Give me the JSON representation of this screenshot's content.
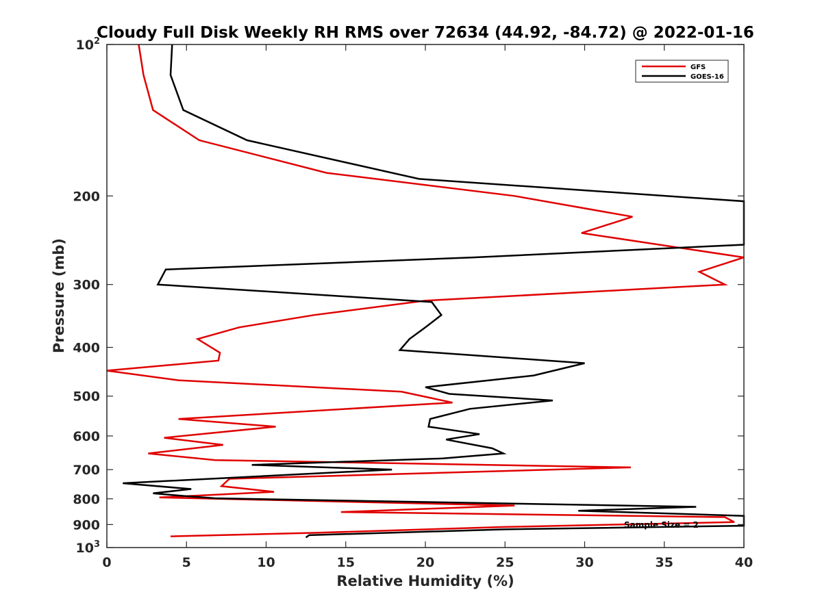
{
  "chart_data": {
    "type": "line",
    "title": "Cloudy Full Disk Weekly RH RMS over 72634 (44.92, -84.72) @ 2022-01-16",
    "xlabel": "Relative Humidity (%)",
    "ylabel": "Pressure (mb)",
    "xlim": [
      0,
      40
    ],
    "ylim": [
      100,
      1000
    ],
    "y_scale": "log",
    "y_reversed": true,
    "x_ticks": [
      "0",
      "5",
      "10",
      "15",
      "20",
      "25",
      "30",
      "35",
      "40"
    ],
    "y_ticks": [
      {
        "value": 100,
        "label": "10",
        "exp": "2"
      },
      {
        "value": 200,
        "label": "200"
      },
      {
        "value": 300,
        "label": "300"
      },
      {
        "value": 400,
        "label": "400"
      },
      {
        "value": 500,
        "label": "500"
      },
      {
        "value": 600,
        "label": "600"
      },
      {
        "value": 700,
        "label": "700"
      },
      {
        "value": 800,
        "label": "800"
      },
      {
        "value": 900,
        "label": "900"
      },
      {
        "value": 1000,
        "label": "10",
        "exp": "3"
      }
    ],
    "legend_position": "top-right",
    "annotation": "Sample Size = 2",
    "series": [
      {
        "name": "GFS",
        "color": "#e00000",
        "points": [
          [
            2.0,
            100
          ],
          [
            2.3,
            115
          ],
          [
            2.9,
            135
          ],
          [
            5.8,
            155
          ],
          [
            13.8,
            180
          ],
          [
            25.6,
            200
          ],
          [
            33.0,
            220
          ],
          [
            29.8,
            237
          ],
          [
            40.0,
            265
          ],
          [
            37.2,
            283
          ],
          [
            38.8,
            300
          ],
          [
            20.0,
            323
          ],
          [
            13.0,
            345
          ],
          [
            8.3,
            365
          ],
          [
            5.7,
            385
          ],
          [
            7.1,
            410
          ],
          [
            7.0,
            425
          ],
          [
            0.0,
            445
          ],
          [
            4.5,
            465
          ],
          [
            18.5,
            490
          ],
          [
            21.7,
            515
          ],
          [
            4.5,
            555
          ],
          [
            10.6,
            575
          ],
          [
            3.6,
            605
          ],
          [
            7.3,
            625
          ],
          [
            2.6,
            650
          ],
          [
            6.8,
            670
          ],
          [
            32.9,
            693
          ],
          [
            7.7,
            730
          ],
          [
            7.2,
            755
          ],
          [
            10.5,
            775
          ],
          [
            3.3,
            795
          ],
          [
            25.6,
            825
          ],
          [
            14.7,
            850
          ],
          [
            38.8,
            870
          ],
          [
            39.4,
            890
          ],
          [
            25.0,
            910
          ],
          [
            13.0,
            935
          ],
          [
            4.0,
            950
          ]
        ]
      },
      {
        "name": "GOES-16",
        "color": "#000000",
        "points": [
          [
            4.1,
            100
          ],
          [
            4.0,
            115
          ],
          [
            4.8,
            135
          ],
          [
            8.8,
            155
          ],
          [
            19.6,
            185
          ],
          [
            40.0,
            205
          ],
          [
            40.0,
            250
          ],
          [
            23.0,
            265
          ],
          [
            3.7,
            280
          ],
          [
            3.2,
            300
          ],
          [
            20.4,
            325
          ],
          [
            21.0,
            345
          ],
          [
            20.0,
            365
          ],
          [
            19.0,
            385
          ],
          [
            18.4,
            405
          ],
          [
            30.0,
            430
          ],
          [
            26.8,
            455
          ],
          [
            20.0,
            480
          ],
          [
            21.5,
            495
          ],
          [
            28.0,
            510
          ],
          [
            22.8,
            530
          ],
          [
            20.3,
            555
          ],
          [
            20.2,
            575
          ],
          [
            23.4,
            595
          ],
          [
            21.3,
            610
          ],
          [
            24.2,
            635
          ],
          [
            24.9,
            650
          ],
          [
            21.1,
            665
          ],
          [
            9.1,
            685
          ],
          [
            17.9,
            700
          ],
          [
            1.0,
            745
          ],
          [
            5.3,
            765
          ],
          [
            2.9,
            780
          ],
          [
            4.9,
            790
          ],
          [
            6.8,
            798
          ],
          [
            37.0,
            830
          ],
          [
            29.6,
            845
          ],
          [
            40.0,
            865
          ],
          [
            40.0,
            905
          ],
          [
            25.0,
            920
          ],
          [
            12.7,
            945
          ],
          [
            12.5,
            955
          ]
        ]
      }
    ]
  }
}
